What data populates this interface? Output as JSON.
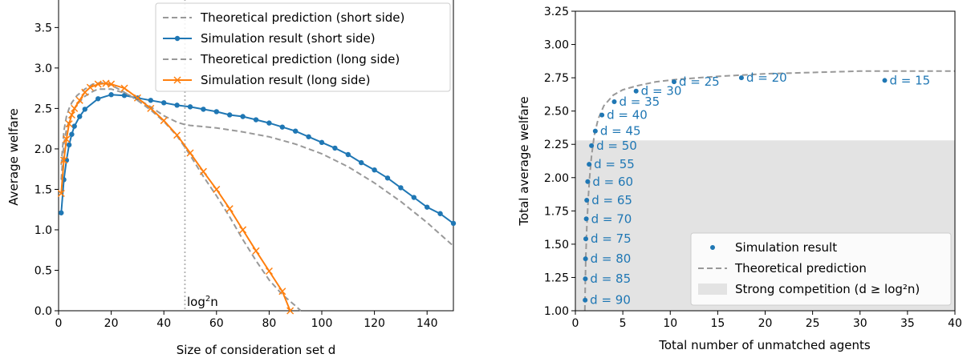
{
  "chart_data": [
    {
      "type": "line",
      "xlabel": "Size of consideration set d",
      "ylabel": "Average welfare",
      "xlim": [
        0,
        150
      ],
      "ylim": [
        0,
        3.85
      ],
      "xticks": [
        "0",
        "20",
        "40",
        "60",
        "80",
        "100",
        "120",
        "140"
      ],
      "yticks": [
        "0.0",
        "0.5",
        "1.0",
        "1.5",
        "2.0",
        "2.5",
        "3.0",
        "3.5"
      ],
      "vline": {
        "x": 48,
        "label": "log",
        "label_sup": "2",
        "label_tail": "n",
        "color": "#b0b0b0"
      },
      "legend_position": "top-right",
      "series": [
        {
          "name": "Theoretical prediction (short side)",
          "style": "dashed",
          "color": "#999999",
          "x": [
            1,
            2,
            3,
            4,
            5,
            7,
            10,
            13,
            15,
            20,
            25,
            30,
            35,
            40,
            45,
            48,
            50,
            60,
            70,
            80,
            90,
            100,
            110,
            120,
            130,
            140,
            150
          ],
          "y": [
            1.62,
            2.06,
            2.24,
            2.35,
            2.43,
            2.55,
            2.65,
            2.71,
            2.74,
            2.74,
            2.69,
            2.62,
            2.52,
            2.41,
            2.33,
            2.3,
            2.29,
            2.26,
            2.21,
            2.15,
            2.06,
            1.94,
            1.78,
            1.58,
            1.35,
            1.09,
            0.8
          ]
        },
        {
          "name": "Simulation result (short side)",
          "style": "solid-dot",
          "color": "#1f77b4",
          "x": [
            1,
            2,
            3,
            4,
            5,
            6,
            8,
            10,
            15,
            20,
            25,
            30,
            35,
            40,
            45,
            50,
            55,
            60,
            65,
            70,
            75,
            80,
            85,
            90,
            95,
            100,
            105,
            110,
            115,
            120,
            125,
            130,
            135,
            140,
            145,
            150
          ],
          "y": [
            1.21,
            1.62,
            1.86,
            2.05,
            2.18,
            2.28,
            2.4,
            2.49,
            2.62,
            2.67,
            2.66,
            2.63,
            2.6,
            2.57,
            2.54,
            2.52,
            2.49,
            2.46,
            2.42,
            2.4,
            2.36,
            2.32,
            2.27,
            2.22,
            2.15,
            2.08,
            2.01,
            1.93,
            1.83,
            1.74,
            1.64,
            1.52,
            1.4,
            1.28,
            1.2,
            1.08
          ]
        },
        {
          "name": "Theoretical prediction (long side)",
          "style": "dashed",
          "color": "#999999",
          "x": [
            1,
            2,
            3,
            4,
            5,
            7,
            10,
            13,
            16,
            20,
            25,
            30,
            35,
            40,
            45,
            48,
            50,
            55,
            60,
            65,
            70,
            75,
            80,
            85,
            90,
            92
          ],
          "y": [
            1.8,
            2.22,
            2.4,
            2.5,
            2.57,
            2.66,
            2.74,
            2.8,
            2.82,
            2.79,
            2.7,
            2.6,
            2.48,
            2.34,
            2.16,
            2.02,
            1.92,
            1.66,
            1.42,
            1.16,
            0.88,
            0.62,
            0.38,
            0.2,
            0.06,
            0.0
          ]
        },
        {
          "name": "Simulation result (long side)",
          "style": "solid-x",
          "color": "#ff7f0e",
          "x": [
            1,
            2,
            3,
            4,
            5,
            6,
            8,
            10,
            12,
            15,
            18,
            20,
            25,
            30,
            35,
            40,
            45,
            50,
            55,
            60,
            65,
            70,
            75,
            80,
            85,
            88
          ],
          "y": [
            1.45,
            1.86,
            2.12,
            2.31,
            2.42,
            2.5,
            2.6,
            2.7,
            2.76,
            2.8,
            2.81,
            2.8,
            2.75,
            2.63,
            2.5,
            2.35,
            2.17,
            1.95,
            1.72,
            1.5,
            1.26,
            1.0,
            0.74,
            0.49,
            0.24,
            0.0
          ]
        }
      ]
    },
    {
      "type": "scatter",
      "xlabel": "Total number of unmatched agents",
      "ylabel": "Total average welfare",
      "xlim": [
        0,
        40
      ],
      "ylim": [
        1.0,
        3.25
      ],
      "xticks": [
        "0",
        "5",
        "10",
        "15",
        "20",
        "25",
        "30",
        "35",
        "40"
      ],
      "yticks": [
        "1.00",
        "1.25",
        "1.50",
        "1.75",
        "2.00",
        "2.25",
        "2.50",
        "2.75",
        "3.00",
        "3.25"
      ],
      "shaded_region": {
        "y_from": 1.0,
        "y_to": 2.28,
        "color": "#e3e3e3"
      },
      "legend_position": "bottom-right",
      "legend": [
        "Simulation result",
        "Theoretical prediction",
        "Strong competition (d ≥ log²n)"
      ],
      "points": [
        {
          "label": "d = 15",
          "x": 32.6,
          "y": 2.73
        },
        {
          "label": "d = 20",
          "x": 17.5,
          "y": 2.75
        },
        {
          "label": "d = 25",
          "x": 10.4,
          "y": 2.72
        },
        {
          "label": "d = 30",
          "x": 6.4,
          "y": 2.65
        },
        {
          "label": "d = 35",
          "x": 4.1,
          "y": 2.57
        },
        {
          "label": "d = 40",
          "x": 2.8,
          "y": 2.47
        },
        {
          "label": "d = 45",
          "x": 2.1,
          "y": 2.35
        },
        {
          "label": "d = 50",
          "x": 1.7,
          "y": 2.24
        },
        {
          "label": "d = 55",
          "x": 1.45,
          "y": 2.1
        },
        {
          "label": "d = 60",
          "x": 1.3,
          "y": 1.97
        },
        {
          "label": "d = 65",
          "x": 1.2,
          "y": 1.83
        },
        {
          "label": "d = 70",
          "x": 1.15,
          "y": 1.69
        },
        {
          "label": "d = 75",
          "x": 1.1,
          "y": 1.54
        },
        {
          "label": "d = 80",
          "x": 1.07,
          "y": 1.39
        },
        {
          "label": "d = 85",
          "x": 1.05,
          "y": 1.24
        },
        {
          "label": "d = 90",
          "x": 1.03,
          "y": 1.08
        }
      ],
      "theory_curve": {
        "x": [
          1.0,
          1.05,
          1.1,
          1.2,
          1.35,
          1.5,
          1.7,
          2.0,
          2.4,
          3.0,
          4.0,
          5.0,
          6.5,
          8.5,
          11,
          15,
          20,
          25,
          30,
          35,
          40
        ],
        "y": [
          1.0,
          1.22,
          1.4,
          1.62,
          1.84,
          2.0,
          2.16,
          2.32,
          2.44,
          2.54,
          2.62,
          2.66,
          2.69,
          2.72,
          2.74,
          2.76,
          2.78,
          2.79,
          2.8,
          2.8,
          2.8
        ]
      },
      "point_color": "#1f77b4",
      "curve_color": "#999999"
    }
  ]
}
